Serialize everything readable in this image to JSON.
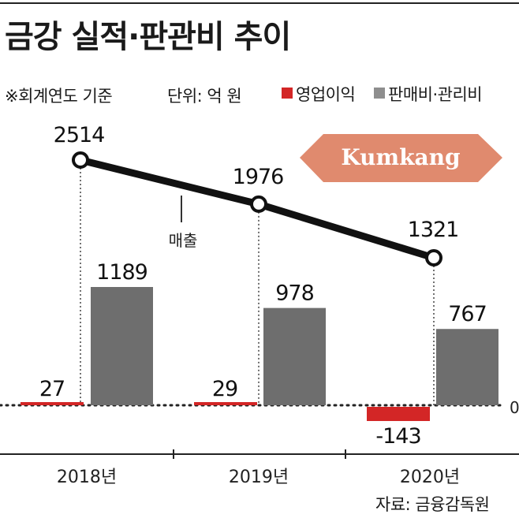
{
  "header": {
    "title": "금강 실적·판관비 추이",
    "note": "※회계연도 기준",
    "unit": "단위: 억 원"
  },
  "legend": {
    "operating_profit": "영업이익",
    "sga": "판매비·관리비"
  },
  "logo": {
    "text": "Kumkang",
    "color": "#E08A6E",
    "text_color": "#ffffff"
  },
  "source": "자료: 금융감독원",
  "colors": {
    "revenue_line": "#111111",
    "operating_profit": "#D32626",
    "sga": "#6E6E6E"
  },
  "chart_data": {
    "type": "bar",
    "categories": [
      "2018년",
      "2019년",
      "2020년"
    ],
    "series": [
      {
        "name": "영업이익",
        "type": "bar",
        "values": [
          27,
          29,
          -143
        ]
      },
      {
        "name": "판매비·관리비",
        "type": "bar",
        "values": [
          1189,
          978,
          767
        ]
      },
      {
        "name": "매출",
        "type": "line",
        "values": [
          2514,
          1976,
          1321
        ]
      }
    ],
    "zero_label": "0",
    "value_labels": {
      "operating_profit": [
        "27",
        "29",
        "-143"
      ],
      "sga": [
        "1189",
        "978",
        "767"
      ],
      "revenue": [
        "2514",
        "1976",
        "1321"
      ]
    }
  }
}
